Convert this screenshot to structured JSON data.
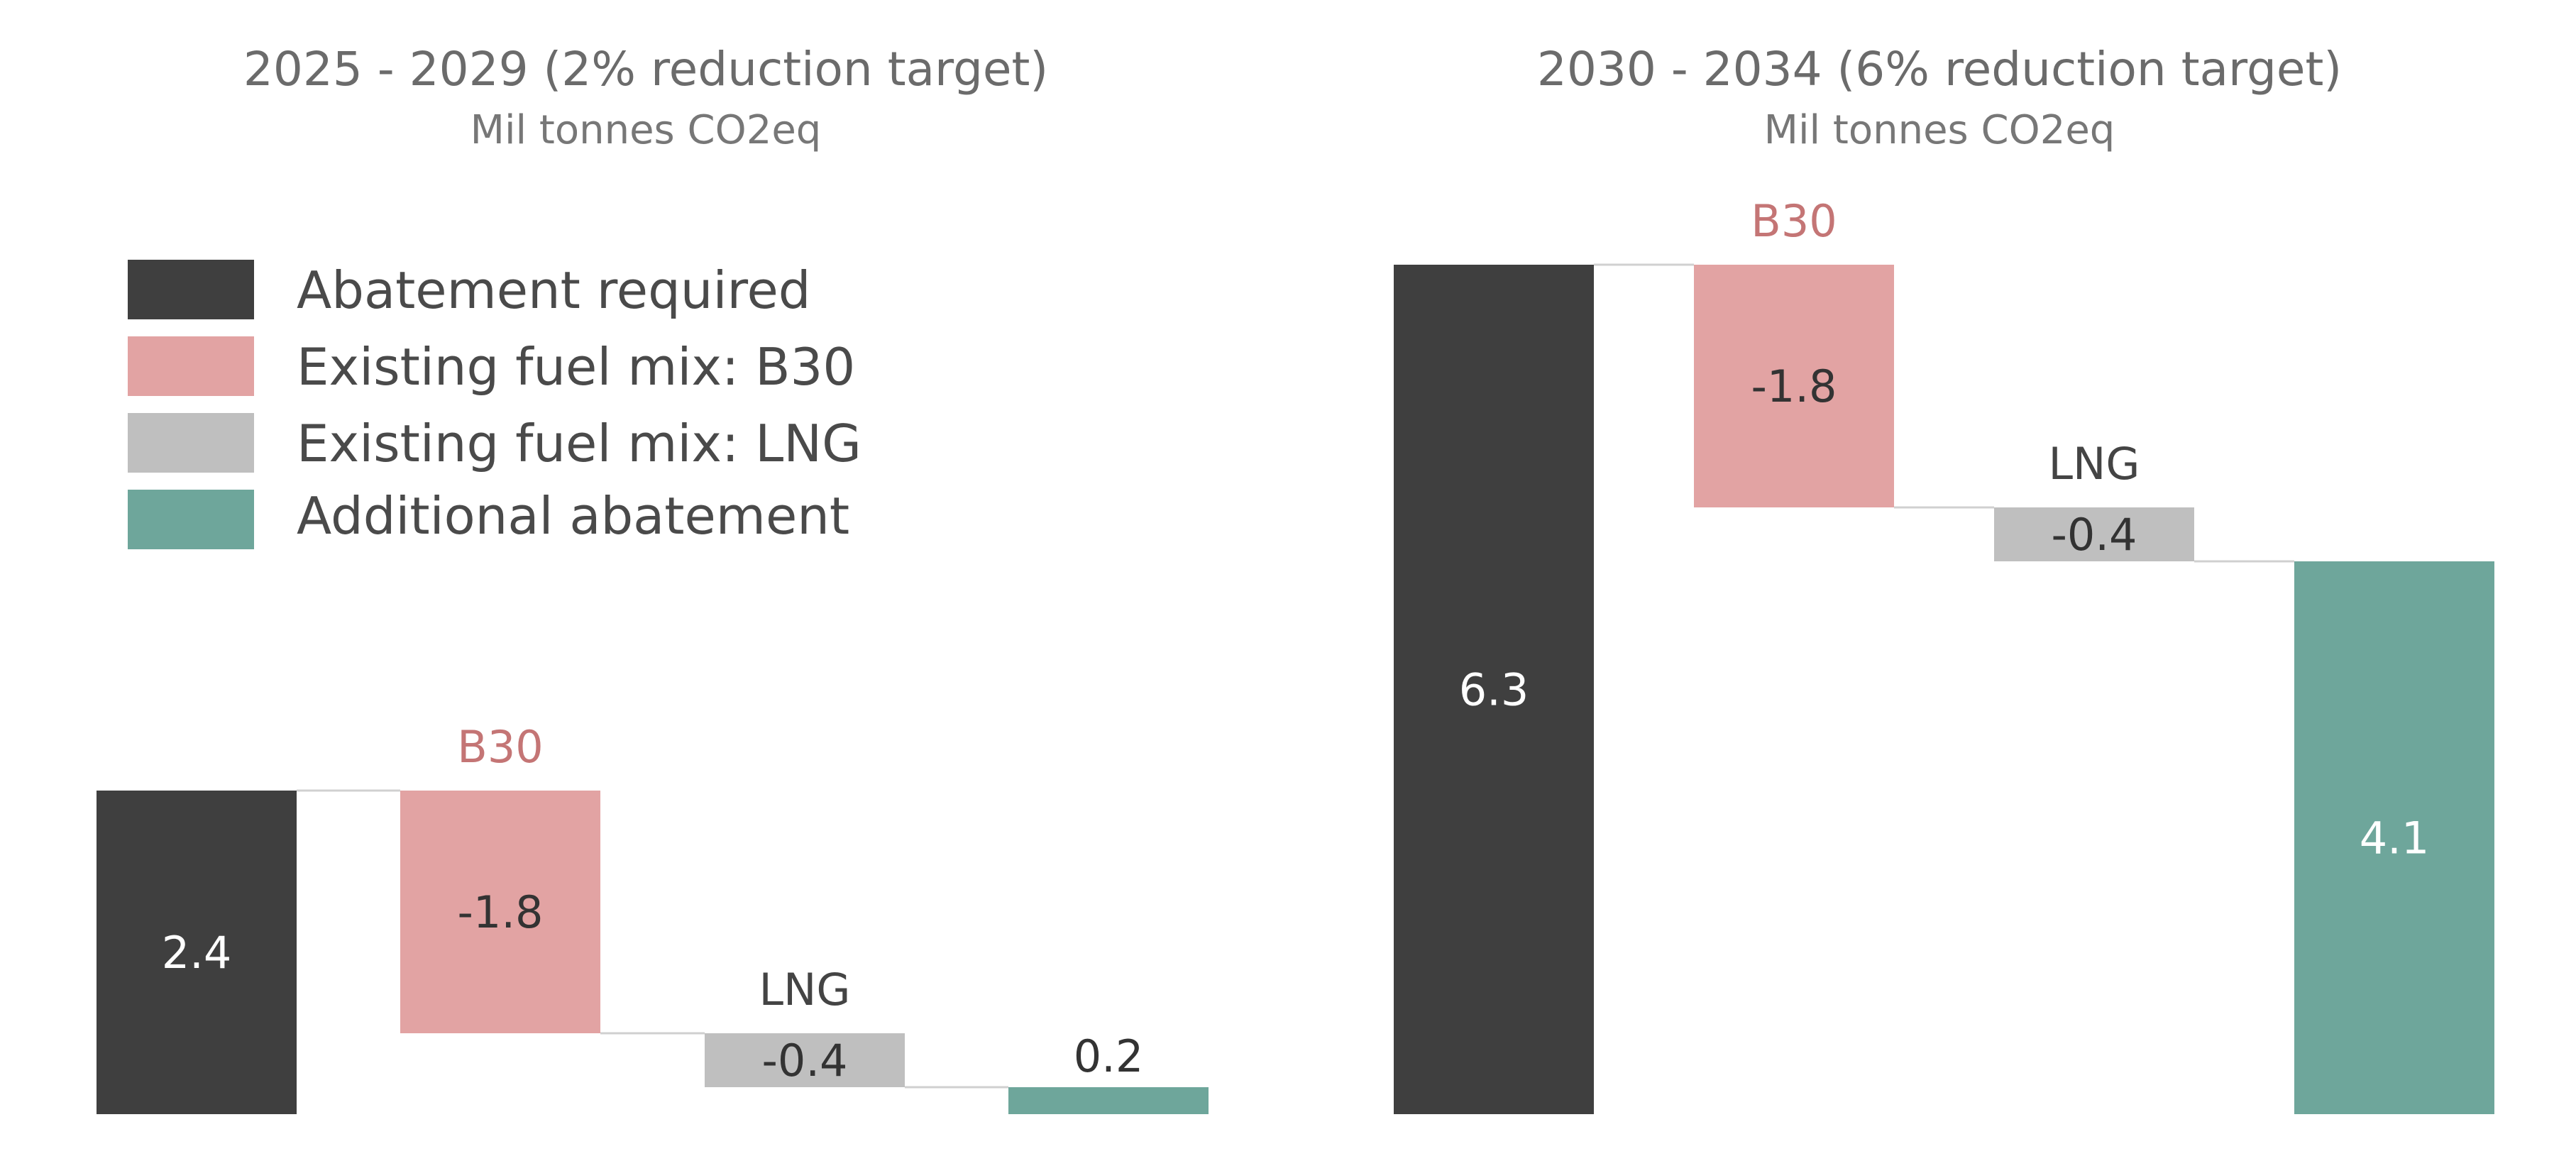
{
  "colors": {
    "abatement_required": "#3f3f3f",
    "b30": "#e2a3a3",
    "lng": "#bfbfbf",
    "additional_abatement": "#6ea69b",
    "b30_label": "#c47575",
    "lng_label": "#444444",
    "connector": "#d0d0d0"
  },
  "legend": {
    "items": [
      {
        "label": "Abatement required",
        "color": "#3f3f3f"
      },
      {
        "label": "Existing fuel mix: B30",
        "color": "#e2a3a3"
      },
      {
        "label": "Existing fuel mix: LNG",
        "color": "#bfbfbf"
      },
      {
        "label": "Additional abatement",
        "color": "#6ea69b"
      }
    ]
  },
  "chart_data": [
    {
      "type": "bar",
      "subtype": "waterfall",
      "title": "2025 - 2029 (2% reduction target)",
      "subtitle": "Mil tonnes CO2eq",
      "categories": [
        "Abatement required",
        "B30",
        "LNG",
        "Additional abatement"
      ],
      "values": [
        2.4,
        -1.8,
        -0.4,
        0.2
      ],
      "value_labels": [
        "2.4",
        "-1.8",
        "-0.4",
        "0.2"
      ],
      "category_labels": [
        "",
        "B30",
        "LNG",
        ""
      ],
      "ylim": [
        0,
        6.3
      ]
    },
    {
      "type": "bar",
      "subtype": "waterfall",
      "title": "2030 - 2034 (6% reduction target)",
      "subtitle": "Mil tonnes CO2eq",
      "categories": [
        "Abatement required",
        "B30",
        "LNG",
        "Additional abatement"
      ],
      "values": [
        6.3,
        -1.8,
        -0.4,
        4.1
      ],
      "value_labels": [
        "6.3",
        "-1.8",
        "-0.4",
        "4.1"
      ],
      "category_labels": [
        "",
        "B30",
        "LNG",
        ""
      ],
      "ylim": [
        0,
        6.3
      ]
    }
  ]
}
